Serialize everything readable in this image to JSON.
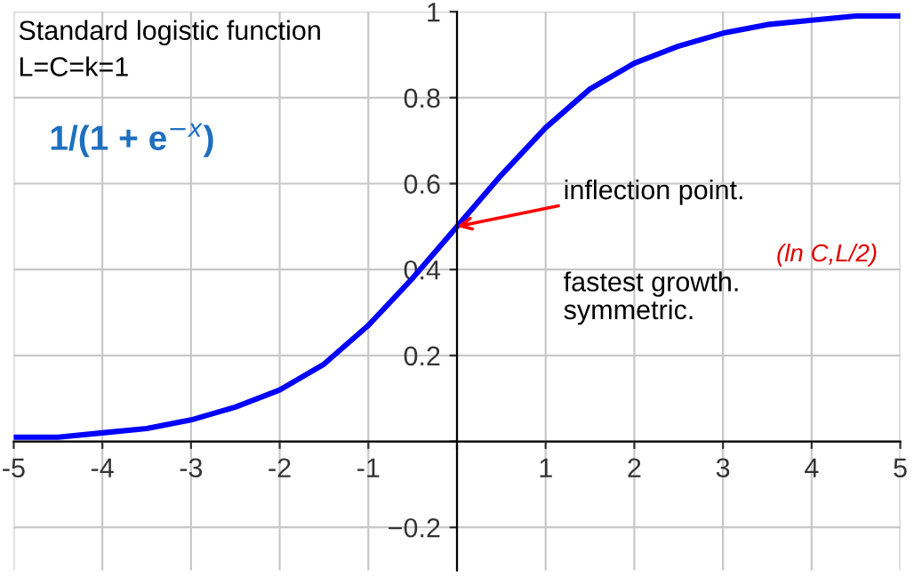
{
  "chart_data": {
    "type": "line",
    "x": [
      -5,
      -4.5,
      -4,
      -3.5,
      -3,
      -2.5,
      -2,
      -1.5,
      -1,
      -0.5,
      0,
      0.5,
      1,
      1.5,
      2,
      2.5,
      3,
      3.5,
      4,
      4.5,
      5
    ],
    "series": [
      {
        "color": "#0000ff",
        "values": [
          0.01,
          0.01,
          0.02,
          0.03,
          0.05,
          0.08,
          0.12,
          0.18,
          0.27,
          0.38,
          0.5,
          0.62,
          0.73,
          0.82,
          0.88,
          0.92,
          0.95,
          0.97,
          0.98,
          0.99,
          0.99
        ]
      }
    ],
    "xlim": [
      -5,
      5
    ],
    "ylim": [
      -0.3,
      1.0
    ],
    "xticks": [
      -5,
      -4,
      -3,
      -2,
      -1,
      {
        "value": 0,
        "label": null
      },
      1,
      2,
      3,
      4,
      5
    ],
    "yticks": [
      {
        "value": -0.2,
        "label": "−0.2"
      },
      {
        "value": 0,
        "label": null
      },
      0.2,
      0.4,
      0.6,
      0.8,
      1
    ],
    "grid": true,
    "marker": "none",
    "line_style": "solid",
    "annotations": [
      "Standard logistic function",
      "L=C=k=1",
      "1/(1 + e$^{−x}$)",
      {
        "text": "inflection point.",
        "x": 0,
        "y": 0.5
      },
      "(ln C,L/2)",
      "fastest growth.",
      "symmetric."
    ]
  }
}
